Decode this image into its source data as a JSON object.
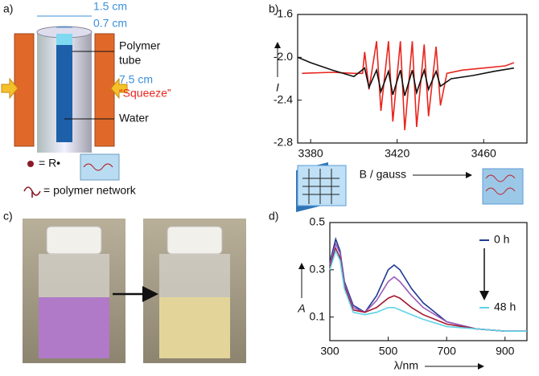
{
  "panels": {
    "a": {
      "label": "a)",
      "dims": [
        "1.5 cm",
        "0.7 cm",
        "7.5 cm"
      ],
      "polymer_tube": [
        "Polymer",
        "tube"
      ],
      "squeeze": "“Squeeze”",
      "water": "Water",
      "legend": [
        "= R•",
        "= polymer network"
      ]
    },
    "c": {
      "label": "c)"
    }
  },
  "chart_data": [
    {
      "type": "line",
      "panel_label": "b)",
      "x_label": "B / gauss",
      "y_label": "I",
      "xlim": [
        3374,
        3480
      ],
      "xticks": [
        3380,
        3420,
        3460
      ],
      "ylim": [
        -2.8,
        -1.6
      ],
      "yticks": [
        -1.6,
        {
          "value": -2.0,
          "label": "-2.0"
        },
        -2.4,
        -2.8
      ],
      "series": [
        {
          "color": "#e8261e",
          "x": [
            3376,
            3390,
            3400,
            3404,
            3405,
            3407,
            3410.5,
            3412.5,
            3416,
            3418,
            3421.5,
            3423.5,
            3427,
            3429,
            3432.5,
            3434.5,
            3438,
            3440,
            3443,
            3450,
            3460,
            3470,
            3474
          ],
          "values": [
            -2.15,
            -2.14,
            -2.15,
            -2.15,
            -1.95,
            -2.3,
            -1.85,
            -2.5,
            -1.85,
            -2.6,
            -1.85,
            -2.68,
            -1.85,
            -2.65,
            -1.88,
            -2.55,
            -1.9,
            -2.45,
            -2.15,
            -2.12,
            -2.1,
            -2.08,
            -2.05
          ]
        },
        {
          "color": "#111111",
          "x": [
            3374,
            3380,
            3390,
            3400,
            3405,
            3407,
            3410.5,
            3412.5,
            3416,
            3418,
            3421.5,
            3423.5,
            3427,
            3429,
            3432.5,
            3434.5,
            3438,
            3440,
            3445,
            3455,
            3465,
            3474
          ],
          "values": [
            -2.0,
            -2.05,
            -2.12,
            -2.18,
            -2.1,
            -2.28,
            -2.12,
            -2.32,
            -2.13,
            -2.35,
            -2.12,
            -2.36,
            -2.12,
            -2.33,
            -2.12,
            -2.3,
            -2.13,
            -2.27,
            -2.2,
            -2.17,
            -2.13,
            -2.1
          ]
        }
      ]
    },
    {
      "type": "line",
      "panel_label": "d)",
      "x_label": "λ/nm",
      "y_label": "A",
      "xlim": [
        300,
        975
      ],
      "xticks": [
        300,
        500,
        700,
        900
      ],
      "ylim": [
        0,
        0.5
      ],
      "yticks": [
        0.1,
        0.3,
        0.5
      ],
      "x": [
        300,
        320,
        335,
        350,
        380,
        420,
        460,
        500,
        520,
        540,
        580,
        620,
        700,
        800,
        900,
        975
      ],
      "series": [
        {
          "name": "0 h",
          "color": "#1f3a93",
          "values": [
            0.33,
            0.43,
            0.38,
            0.25,
            0.15,
            0.12,
            0.19,
            0.3,
            0.32,
            0.3,
            0.22,
            0.16,
            0.08,
            0.05,
            0.04,
            0.04
          ]
        },
        {
          "color": "#9b59b6",
          "values": [
            0.32,
            0.41,
            0.37,
            0.24,
            0.14,
            0.12,
            0.17,
            0.25,
            0.27,
            0.25,
            0.19,
            0.14,
            0.08,
            0.05,
            0.04,
            0.04
          ]
        },
        {
          "color": "#a4162e",
          "values": [
            0.31,
            0.39,
            0.35,
            0.23,
            0.13,
            0.12,
            0.14,
            0.18,
            0.19,
            0.18,
            0.14,
            0.11,
            0.07,
            0.05,
            0.04,
            0.04
          ]
        },
        {
          "name": "48 h",
          "color": "#5fd3e8",
          "values": [
            0.3,
            0.38,
            0.34,
            0.22,
            0.12,
            0.11,
            0.12,
            0.14,
            0.14,
            0.13,
            0.11,
            0.09,
            0.06,
            0.05,
            0.04,
            0.04
          ]
        }
      ]
    }
  ]
}
